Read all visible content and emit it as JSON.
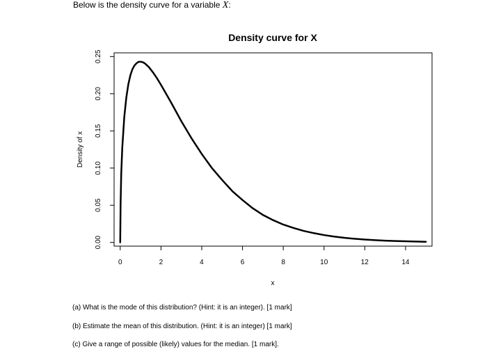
{
  "intro": {
    "text": "Below is the density curve for a variable",
    "variable": "X",
    "suffix": ":"
  },
  "questions": {
    "a": "(a) What is the mode of this distribution? (Hint: it is an integer). [1 mark]",
    "b": "(b) Estimate the mean of this distribution. (Hint: it is an integer) [1 mark]",
    "c": "(c) Give a range of possible (likely) values for the median. [1 mark]."
  },
  "chart_data": {
    "type": "line",
    "title": "Density curve for X",
    "xlabel": "x",
    "ylabel": "Density of x",
    "xlim": [
      -0.3,
      15.3
    ],
    "ylim": [
      -0.005,
      0.255
    ],
    "x_ticks": [
      0,
      2,
      4,
      6,
      8,
      10,
      12,
      14
    ],
    "y_ticks": [
      0.0,
      0.05,
      0.1,
      0.15,
      0.2,
      0.25
    ],
    "x_tick_labels": [
      "0",
      "2",
      "4",
      "6",
      "8",
      "10",
      "12",
      "14"
    ],
    "y_tick_labels": [
      "0.00",
      "0.05",
      "0.10",
      "0.15",
      "0.20",
      "0.25"
    ],
    "grid": false,
    "series": [
      {
        "x": [
          0,
          0.02,
          0.05,
          0.1,
          0.2,
          0.3,
          0.4,
          0.5,
          0.6,
          0.7,
          0.8,
          0.9,
          1.0,
          1.1,
          1.2,
          1.4,
          1.6,
          1.8,
          2.0,
          2.5,
          3.0,
          3.5,
          4.0,
          4.5,
          5.0,
          5.5,
          6.0,
          6.5,
          7.0,
          7.5,
          8.0,
          8.5,
          9.0,
          9.5,
          10.0,
          10.5,
          11.0,
          11.5,
          12.0,
          12.5,
          13.0,
          13.5,
          14.0,
          14.5,
          15.0
        ],
        "y": [
          0,
          0.053,
          0.092,
          0.127,
          0.169,
          0.195,
          0.213,
          0.225,
          0.233,
          0.238,
          0.241,
          0.243,
          0.243,
          0.2425,
          0.241,
          0.236,
          0.229,
          0.221,
          0.212,
          0.188,
          0.163,
          0.14,
          0.119,
          0.1,
          0.084,
          0.069,
          0.057,
          0.046,
          0.037,
          0.03,
          0.024,
          0.0195,
          0.0155,
          0.0125,
          0.0099,
          0.0079,
          0.0062,
          0.0049,
          0.0039,
          0.0031,
          0.0024,
          0.0019,
          0.0015,
          0.0012,
          0.0009
        ]
      }
    ]
  }
}
